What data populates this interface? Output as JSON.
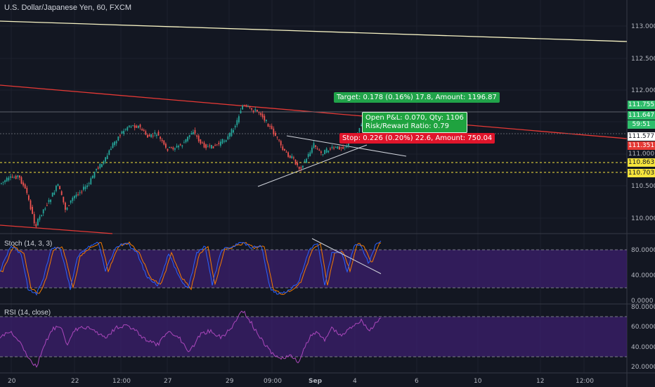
{
  "symbol": {
    "title": "U.S. Dollar/Japanese Yen, 60, FXCM"
  },
  "panes": {
    "stoch": {
      "title": "Stoch (14, 3, 3)",
      "band_upper": 80,
      "band_lower": 20
    },
    "rsi": {
      "title": "RSI (14, close)",
      "band_upper": 70,
      "band_lower": 30
    }
  },
  "price_axis": {
    "ticks": [
      "113.000",
      "112.500",
      "112.000",
      "111.000",
      "110.500",
      "110.000"
    ]
  },
  "stoch_axis": {
    "ticks": [
      "80.0000",
      "40.0000",
      "0.0000"
    ]
  },
  "rsi_axis": {
    "ticks": [
      "80.0000",
      "60.0000",
      "40.0000",
      "20.0000"
    ]
  },
  "time_axis": {
    "ticks": [
      "20",
      "22",
      "12:00",
      "27",
      "29",
      "09:00",
      "Sep",
      "4",
      "6",
      "10",
      "12",
      "12:00"
    ]
  },
  "price_tags": [
    {
      "label": "111.755",
      "bg": "#2ebd6b",
      "fg": "#ffffff"
    },
    {
      "label": "111.647",
      "bg": "#2ebd6b",
      "fg": "#ffffff"
    },
    {
      "label": "59:51",
      "bg": "#2ebd6b",
      "fg": "#ffffff"
    },
    {
      "label": "111.577",
      "bg": "#ffffff",
      "fg": "#131722"
    },
    {
      "label": "111.351",
      "bg": "#e53935",
      "fg": "#ffffff"
    },
    {
      "label": "111.000",
      "bg": "transparent",
      "fg": "#b2b5be"
    },
    {
      "label": "110.863",
      "bg": "#f5e33c",
      "fg": "#131722"
    },
    {
      "label": "110.703",
      "bg": "#f5e33c",
      "fg": "#131722"
    }
  ],
  "position": {
    "target_label": "Target: 0.178 (0.16%) 17.8, Amount: 1196.87",
    "pnl_label": "Open P&L: 0.070, Qty: 1106",
    "rr_label": "Risk/Reward Ratio: 0.79",
    "stop_label": "Stop: 0.226 (0.20%) 22.6, Amount: 750.04",
    "colors": {
      "target": "#21a34a",
      "stop": "#e0152b",
      "pnl": "#1fa33f"
    }
  },
  "colors": {
    "background": "#131722",
    "up": "#26a69a",
    "down": "#ef5350",
    "trend_red": "#e53935",
    "trend_yellow": "#f7f3c4",
    "band_fill": "#3c1f6e"
  }
}
